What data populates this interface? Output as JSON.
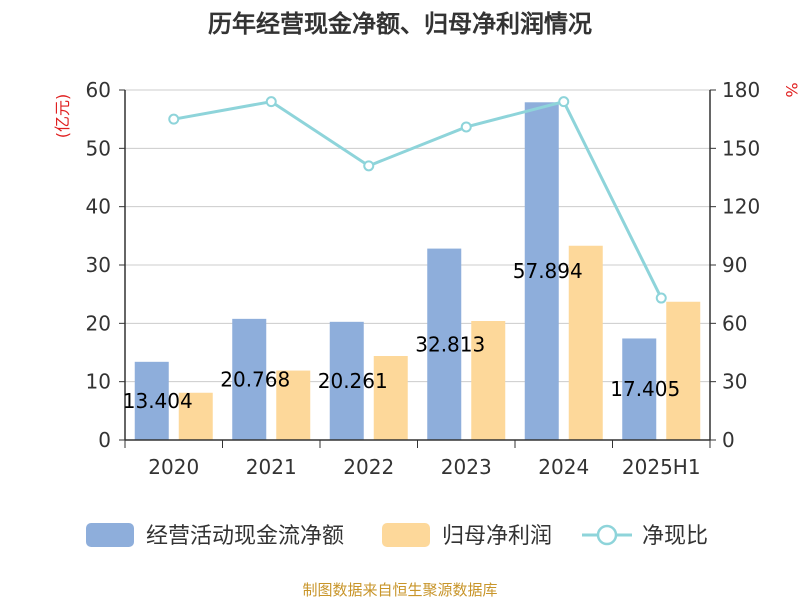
{
  "chart_data": {
    "type": "bar",
    "title": "历年经营现金净额、归母净利润情况",
    "categories": [
      "2020",
      "2021",
      "2022",
      "2023",
      "2024",
      "2025H1"
    ],
    "left_axis": {
      "unit": "(亿元)",
      "ylim": [
        0,
        60
      ],
      "ticks": [
        "0",
        "10",
        "20",
        "30",
        "40",
        "50",
        "60"
      ]
    },
    "right_axis": {
      "unit": "%",
      "ylim": [
        0,
        180
      ],
      "ticks": [
        "0",
        "30",
        "60",
        "90",
        "120",
        "150",
        "180"
      ]
    },
    "series": [
      {
        "name": "经营活动现金流净额",
        "type": "bar",
        "axis": "left",
        "color": "#8eaedb",
        "values": [
          13.404,
          20.768,
          20.261,
          32.813,
          57.894,
          17.405
        ],
        "labels": [
          "13.404",
          "20.768",
          "20.261",
          "32.813",
          "57.894",
          "17.405"
        ]
      },
      {
        "name": "归母净利润",
        "type": "bar",
        "axis": "left",
        "color": "#fdd89a",
        "values": [
          8.1,
          11.9,
          14.4,
          20.4,
          33.3,
          23.7
        ]
      },
      {
        "name": "净现比",
        "type": "line",
        "axis": "right",
        "color": "#8ed4da",
        "values": [
          165,
          174,
          141,
          161,
          174,
          73
        ]
      }
    ],
    "grid": true,
    "legend_position": "bottom",
    "source": "制图数据来自恒生聚源数据库"
  }
}
